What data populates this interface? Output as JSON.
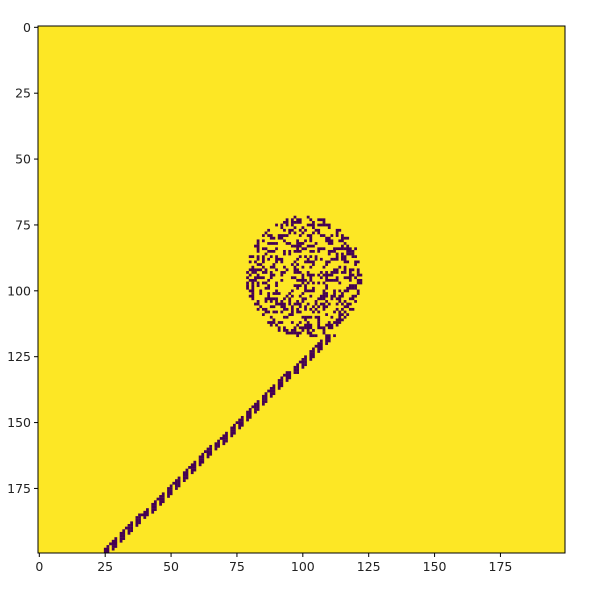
{
  "chart_data": {
    "type": "heatmap",
    "title": "",
    "xlabel": "",
    "ylabel": "",
    "grid_size": [
      200,
      200
    ],
    "xlim": [
      0,
      199
    ],
    "ylim": [
      199,
      0
    ],
    "x_ticks": [
      0,
      25,
      50,
      75,
      100,
      125,
      150,
      175
    ],
    "y_ticks": [
      0,
      25,
      50,
      75,
      100,
      125,
      150,
      175
    ],
    "colormap": {
      "background": "#FDE725",
      "cell": "#440154"
    },
    "grid": false,
    "cluster": {
      "x_range": [
        79,
        122
      ],
      "y_range": [
        72,
        117
      ],
      "density": 0.33
    },
    "diagonal_trail": {
      "from": [
        24,
        199
      ],
      "to": [
        109,
        117
      ],
      "width": 4
    }
  }
}
